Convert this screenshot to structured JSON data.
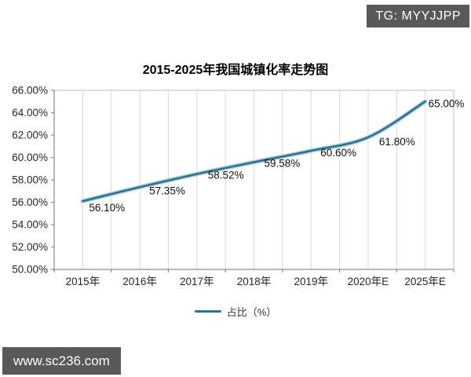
{
  "overlays": {
    "tg_badge": "TG: MYYJJPP",
    "watermark": "www.sc236.com"
  },
  "chart_data": {
    "type": "line",
    "title": "2015-2025年我国城镇化率走势图",
    "categories": [
      "2015年",
      "2016年",
      "2017年",
      "2018年",
      "2019年",
      "2020年E",
      "2025年E"
    ],
    "series": [
      {
        "name": "占比（%）",
        "values": [
          56.1,
          57.35,
          58.52,
          59.58,
          60.6,
          61.8,
          65.0
        ]
      }
    ],
    "data_labels": [
      "56.10%",
      "57.35%",
      "58.52%",
      "59.58%",
      "60.60%",
      "61.80%",
      "65.00%"
    ],
    "y_tick_labels": [
      "66.00%",
      "64.00%",
      "62.00%",
      "60.00%",
      "58.00%",
      "56.00%",
      "54.00%",
      "52.00%",
      "50.00%"
    ],
    "ylim": [
      50,
      66
    ],
    "y_step": 2,
    "legend": "占比（%）",
    "legend_position": "bottom",
    "grid": "vertical-only",
    "line_style": "smooth",
    "colors": {
      "line": "#2e7191",
      "line_halo": "#abd0dc",
      "gridline": "#d9d9d9",
      "axis": "#8c8c8c",
      "plot_border": "#bfbfbf",
      "badge_bg": "#59595b",
      "badge_text": "#ffffff",
      "label_text": "#262626"
    }
  }
}
